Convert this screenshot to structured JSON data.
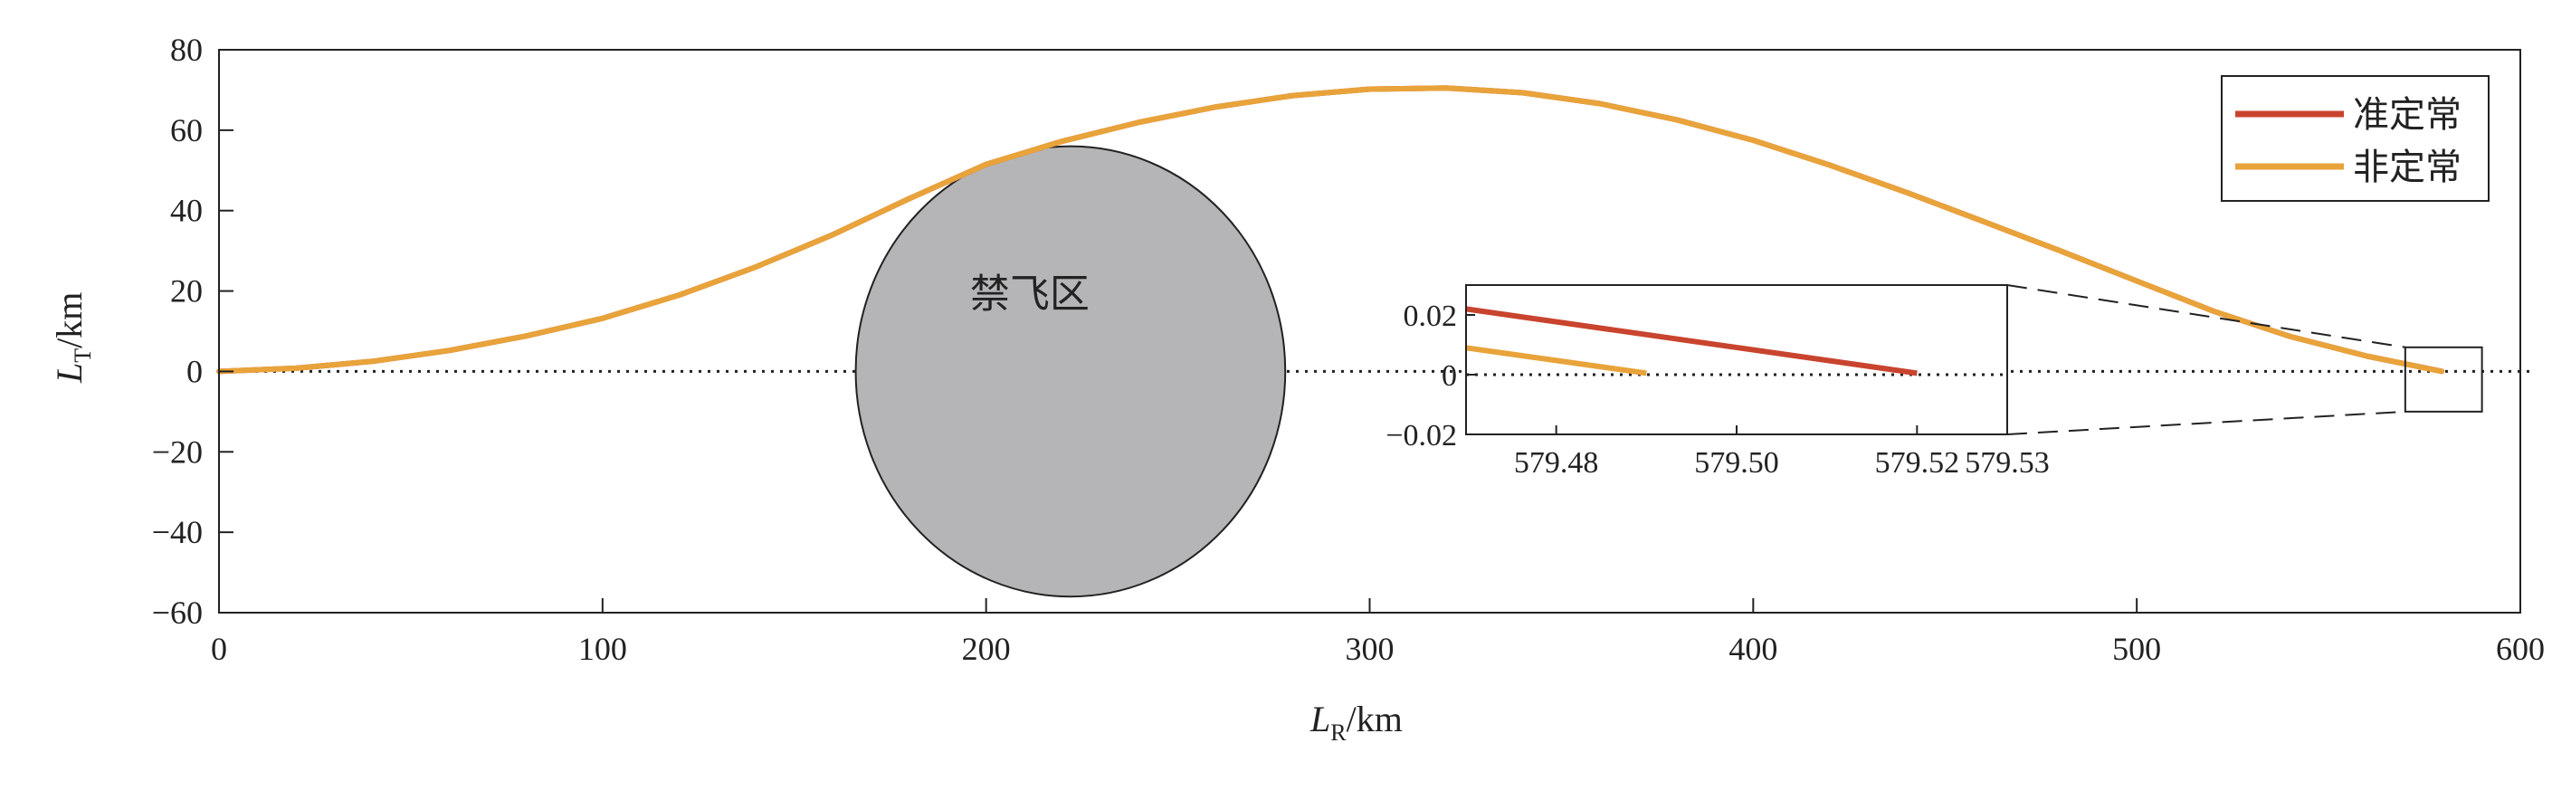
{
  "chart_data": {
    "type": "line",
    "xlabel": "L",
    "xlabel_sub": "R",
    "xlabel_unit": "/km",
    "ylabel": "L",
    "ylabel_sub": "T",
    "ylabel_unit": "/km",
    "xlim": [
      0,
      600
    ],
    "ylim": [
      -60,
      80
    ],
    "xticks": [
      0,
      100,
      200,
      300,
      400,
      500,
      600
    ],
    "xtick_labels": [
      "0",
      "100",
      "200",
      "300",
      "400",
      "500",
      "600"
    ],
    "yticks": [
      -60,
      -40,
      -20,
      0,
      20,
      40,
      60,
      80
    ],
    "ytick_labels": [
      "−60",
      "−40",
      "−20",
      "0",
      "20",
      "40",
      "60",
      "80"
    ],
    "legend_position": "top-right",
    "series": [
      {
        "name": "准定常",
        "color": "#c9442e",
        "x": [
          0,
          20,
          40,
          60,
          80,
          100,
          120,
          140,
          160,
          180,
          200,
          220,
          240,
          260,
          280,
          300,
          320,
          340,
          360,
          380,
          400,
          420,
          440,
          460,
          480,
          500,
          520,
          540,
          560,
          579.52
        ],
        "y": [
          0,
          0.8,
          2.5,
          5.2,
          8.8,
          13.2,
          19.0,
          26.0,
          34.0,
          43.0,
          51.5,
          57.3,
          62.0,
          65.8,
          68.6,
          70.2,
          70.5,
          69.3,
          66.6,
          62.6,
          57.5,
          51.3,
          44.5,
          37.3,
          30.0,
          22.5,
          15.0,
          8.7,
          3.8,
          0.02
        ]
      },
      {
        "name": "非定常",
        "color": "#e8a33a",
        "x": [
          0,
          20,
          40,
          60,
          80,
          100,
          120,
          140,
          160,
          180,
          200,
          220,
          240,
          260,
          280,
          300,
          320,
          340,
          360,
          380,
          400,
          420,
          440,
          460,
          480,
          500,
          520,
          540,
          560,
          579.49
        ],
        "y": [
          0,
          0.8,
          2.5,
          5.2,
          8.8,
          13.2,
          19.0,
          26.0,
          34.0,
          43.0,
          51.5,
          57.3,
          62.0,
          65.8,
          68.6,
          70.2,
          70.5,
          69.3,
          66.6,
          62.6,
          57.5,
          51.3,
          44.5,
          37.3,
          30.0,
          22.5,
          15.0,
          8.7,
          3.8,
          0.0
        ]
      }
    ],
    "reference_line": {
      "y": 0,
      "style": "dotted"
    },
    "no_fly_zone": {
      "label": "禁飞区",
      "center": [
        222,
        0
      ],
      "radius_x": 56,
      "radius_y": 56,
      "fill": "#b5b4b6"
    },
    "zoom_box": {
      "xlim": [
        570,
        590
      ],
      "ylim": [
        -10,
        6
      ]
    },
    "inset": {
      "xlim": [
        579.47,
        579.53
      ],
      "ylim": [
        -0.02,
        0.03
      ],
      "xticks": [
        579.48,
        579.5,
        579.52,
        579.53
      ],
      "xtick_labels": [
        "579.48",
        "579.50",
        "579.52",
        "579.53"
      ],
      "yticks": [
        0.02,
        0,
        -0.02
      ],
      "ytick_labels": [
        "0.02",
        "0",
        "−0.02"
      ],
      "segments": [
        {
          "series": "准定常",
          "x": [
            579.47,
            579.52
          ],
          "y": [
            0.022,
            0.0005
          ]
        },
        {
          "series": "非定常",
          "x": [
            579.47,
            579.49
          ],
          "y": [
            0.009,
            0.0005
          ]
        }
      ]
    }
  }
}
